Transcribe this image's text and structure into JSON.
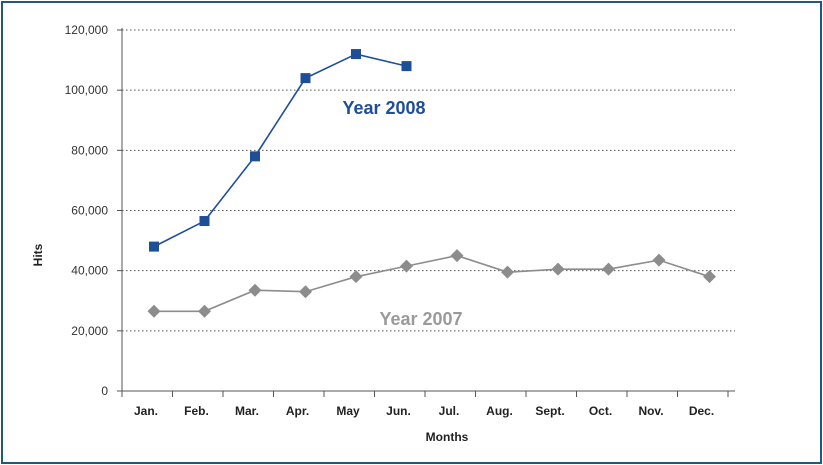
{
  "chart_data": {
    "type": "line",
    "xlabel": "Months",
    "ylabel": "Hits",
    "categories": [
      "Jan.",
      "Feb.",
      "Mar.",
      "Apr.",
      "May",
      "Jun.",
      "Jul.",
      "Aug.",
      "Sept.",
      "Oct.",
      "Nov.",
      "Dec."
    ],
    "ylim": [
      0,
      120000
    ],
    "yticks": [
      0,
      20000,
      40000,
      60000,
      80000,
      100000,
      120000
    ],
    "ytick_labels": [
      "0",
      "20,000",
      "40,000",
      "60,000",
      "80,000",
      "100,000",
      "120,000"
    ],
    "grid": "horizontal dotted",
    "series": [
      {
        "name": "Year 2008",
        "color": "#1f4e99",
        "marker": "square",
        "values": [
          48000,
          56500,
          78000,
          104000,
          112000,
          108000,
          null,
          null,
          null,
          null,
          null,
          null
        ]
      },
      {
        "name": "Year 2007",
        "color": "#8c8c8c",
        "marker": "diamond",
        "values": [
          26500,
          26500,
          33500,
          33000,
          38000,
          41500,
          45000,
          39500,
          40500,
          40500,
          43500,
          38000
        ]
      }
    ]
  }
}
